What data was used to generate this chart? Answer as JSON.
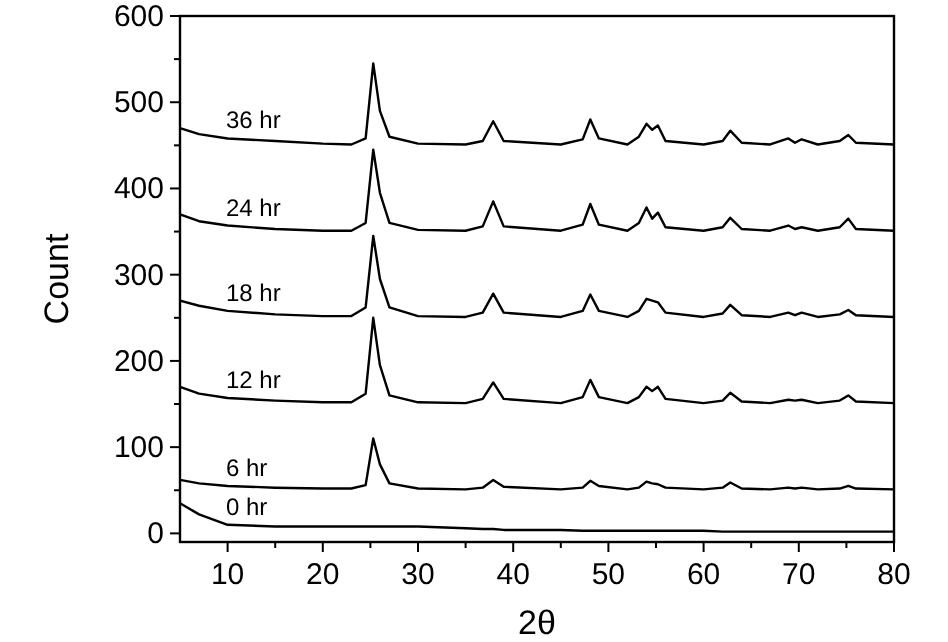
{
  "chart_data": {
    "type": "line",
    "xlabel": "2θ",
    "ylabel": "Count",
    "xlim": [
      5,
      80
    ],
    "ylim": [
      -10,
      600
    ],
    "xticks": [
      10,
      {
        "value": 15,
        "label": null
      },
      20,
      {
        "value": 25,
        "label": null
      },
      30,
      {
        "value": 35,
        "label": null
      },
      40,
      {
        "value": 45,
        "label": null
      },
      50,
      {
        "value": 55,
        "label": null
      },
      60,
      {
        "value": 65,
        "label": null
      },
      70,
      {
        "value": 75,
        "label": null
      },
      80
    ],
    "yticks": [
      0,
      {
        "value": 50,
        "label": null
      },
      100,
      {
        "value": 150,
        "label": null
      },
      200,
      {
        "value": 250,
        "label": null
      },
      300,
      {
        "value": 350,
        "label": null
      },
      400,
      {
        "value": 450,
        "label": null
      },
      500,
      {
        "value": 550,
        "label": null
      },
      600
    ],
    "grid": false,
    "marker": "none",
    "line_style": "solid",
    "x": [
      5,
      7,
      10,
      15,
      20,
      23,
      24.5,
      25.3,
      26,
      27,
      30,
      35,
      36.8,
      37.9,
      39,
      45,
      47.3,
      48.1,
      49,
      52,
      53.2,
      54,
      54.6,
      55.2,
      56,
      60,
      62,
      62.8,
      64,
      67,
      68.9,
      69.6,
      70.3,
      72,
      74.3,
      75.2,
      76,
      80
    ],
    "series": [
      {
        "name": "36 hr",
        "color": "#000000",
        "values": [
          470,
          463,
          458,
          455,
          452,
          451,
          458,
          545,
          490,
          460,
          452,
          451,
          455,
          478,
          455,
          451,
          457,
          480,
          458,
          451,
          460,
          475,
          468,
          473,
          455,
          451,
          455,
          467,
          453,
          451,
          458,
          453,
          457,
          451,
          455,
          462,
          453,
          451
        ]
      },
      {
        "name": "24 hr",
        "color": "#000000",
        "values": [
          370,
          362,
          357,
          353,
          351,
          351,
          360,
          445,
          395,
          360,
          352,
          351,
          356,
          385,
          356,
          351,
          358,
          382,
          358,
          351,
          360,
          378,
          365,
          372,
          355,
          351,
          355,
          366,
          353,
          351,
          357,
          353,
          355,
          351,
          355,
          365,
          353,
          351
        ]
      },
      {
        "name": "18 hr",
        "color": "#000000",
        "values": [
          270,
          264,
          258,
          254,
          252,
          252,
          262,
          345,
          295,
          262,
          252,
          251,
          256,
          278,
          256,
          251,
          258,
          277,
          258,
          251,
          258,
          272,
          270,
          268,
          256,
          251,
          255,
          265,
          253,
          251,
          256,
          253,
          256,
          251,
          254,
          259,
          253,
          251
        ]
      },
      {
        "name": "12 hr",
        "color": "#000000",
        "values": [
          170,
          162,
          157,
          154,
          152,
          152,
          162,
          250,
          195,
          160,
          152,
          151,
          156,
          175,
          156,
          151,
          158,
          178,
          158,
          151,
          158,
          170,
          165,
          170,
          156,
          151,
          154,
          163,
          153,
          151,
          155,
          154,
          155,
          151,
          154,
          160,
          153,
          151
        ]
      },
      {
        "name": "6 hr",
        "color": "#000000",
        "values": [
          62,
          58,
          55,
          53,
          52,
          52,
          56,
          110,
          80,
          58,
          52,
          51,
          53,
          62,
          54,
          51,
          53,
          61,
          55,
          51,
          53,
          60,
          58,
          57,
          53,
          51,
          53,
          59,
          52,
          51,
          53,
          52,
          53,
          51,
          52,
          55,
          52,
          51
        ]
      },
      {
        "name": "0 hr",
        "color": "#000000",
        "values": [
          35,
          22,
          10,
          8,
          8,
          8,
          8,
          8,
          8,
          8,
          8,
          6,
          5,
          5,
          4,
          4,
          3,
          3,
          3,
          3,
          3,
          3,
          3,
          3,
          3,
          3,
          2,
          2,
          2,
          2,
          2,
          2,
          2,
          2,
          2,
          2,
          2,
          2
        ]
      }
    ]
  }
}
